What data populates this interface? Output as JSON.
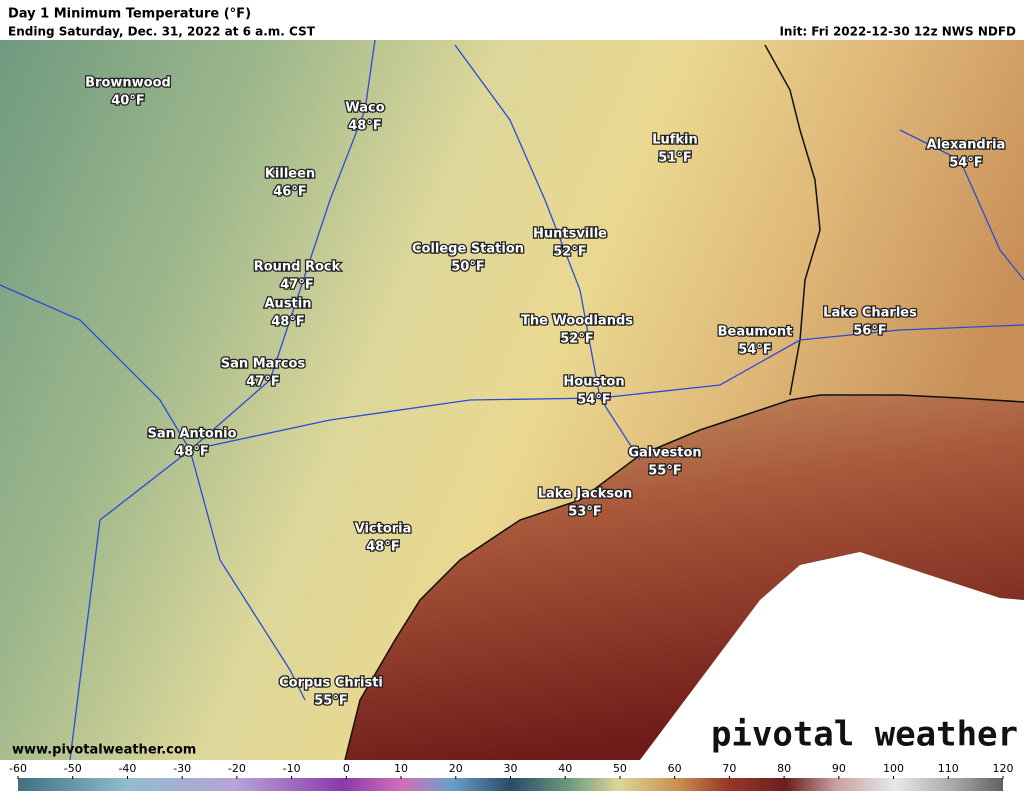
{
  "header": {
    "title": "Day 1 Minimum Temperature (°F)",
    "subtitle": "Ending Saturday, Dec. 31, 2022 at 6 a.m. CST",
    "init": "Init: Fri 2022-12-30 12z NWS NDFD"
  },
  "cities": [
    {
      "name": "Brownwood",
      "temp": "40°F"
    },
    {
      "name": "Waco",
      "temp": "48°F"
    },
    {
      "name": "Killeen",
      "temp": "46°F"
    },
    {
      "name": "Round Rock",
      "temp": "47°F"
    },
    {
      "name": "Austin",
      "temp": "48°F"
    },
    {
      "name": "San Marcos",
      "temp": "47°F"
    },
    {
      "name": "San Antonio",
      "temp": "48°F"
    },
    {
      "name": "College Station",
      "temp": "50°F"
    },
    {
      "name": "Huntsville",
      "temp": "52°F"
    },
    {
      "name": "Lufkin",
      "temp": "51°F"
    },
    {
      "name": "The Woodlands",
      "temp": "52°F"
    },
    {
      "name": "Houston",
      "temp": "54°F"
    },
    {
      "name": "Galveston",
      "temp": "55°F"
    },
    {
      "name": "Lake Jackson",
      "temp": "53°F"
    },
    {
      "name": "Victoria",
      "temp": "48°F"
    },
    {
      "name": "Corpus Christi",
      "temp": "55°F"
    },
    {
      "name": "Beaumont",
      "temp": "54°F"
    },
    {
      "name": "Lake Charles",
      "temp": "56°F"
    },
    {
      "name": "Alexandria",
      "temp": "54°F"
    }
  ],
  "footer": {
    "website": "www.pivotalweather.com",
    "brand": "pivotal weather"
  },
  "colorbar": {
    "ticks": [
      -60,
      -50,
      -40,
      -30,
      -20,
      -10,
      0,
      10,
      20,
      30,
      40,
      50,
      60,
      70,
      80,
      90,
      100,
      110,
      120
    ]
  }
}
